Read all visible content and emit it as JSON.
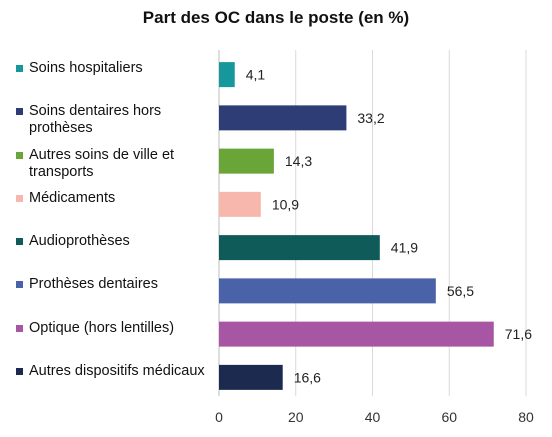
{
  "chart_data": {
    "type": "bar",
    "orientation": "horizontal",
    "title": "Part des OC dans le poste (en %)",
    "xlabel": "",
    "ylabel": "",
    "xlim": [
      0,
      80
    ],
    "xticks": [
      "0",
      "20",
      "40",
      "60",
      "80"
    ],
    "grid": true,
    "legend": "none",
    "categories": [
      "Soins hospitaliers",
      "Soins dentaires hors prothèses",
      "Autres soins de ville et transports",
      "Médicaments",
      "Audioprothèses",
      "Prothèses dentaires",
      "Optique (hors lentilles)",
      "Autres dispositifs médicaux"
    ],
    "values": [
      4.1,
      33.2,
      14.3,
      10.9,
      41.9,
      56.5,
      71.6,
      16.6
    ],
    "value_labels": [
      "4,1",
      "33,2",
      "14,3",
      "10,9",
      "41,9",
      "56,5",
      "71,6",
      "16,6"
    ],
    "colors": [
      "#16979b",
      "#2e3d75",
      "#6aa537",
      "#f7b7ad",
      "#0f5b5a",
      "#4a62a7",
      "#a656a2",
      "#1d2a4f"
    ]
  }
}
